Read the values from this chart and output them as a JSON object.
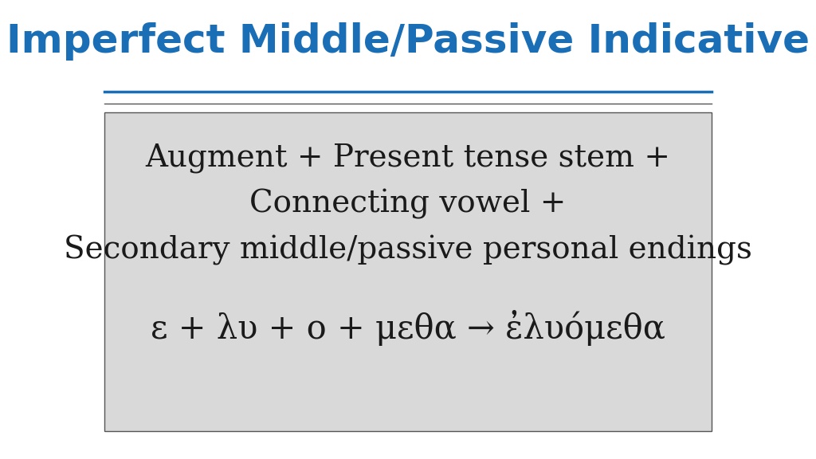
{
  "title": "Imperfect Middle/Passive Indicative",
  "title_color": "#1a6eb5",
  "title_fontsize": 36,
  "bg_color": "#ffffff",
  "box_bg_color": "#d9d9d9",
  "line1": "Augment + Present tense stem +",
  "line2": "Connecting vowel +",
  "line3": "Secondary middle/passive personal endings",
  "line4": "ε + λυ + ο + μεθα → ἐλυόμεθα",
  "body_fontsize": 28,
  "greek_fontsize": 30,
  "text_color": "#1a1a1a",
  "separator_color1": "#1a6eb5",
  "separator_color2": "#555555",
  "box_border_color": "#555555"
}
